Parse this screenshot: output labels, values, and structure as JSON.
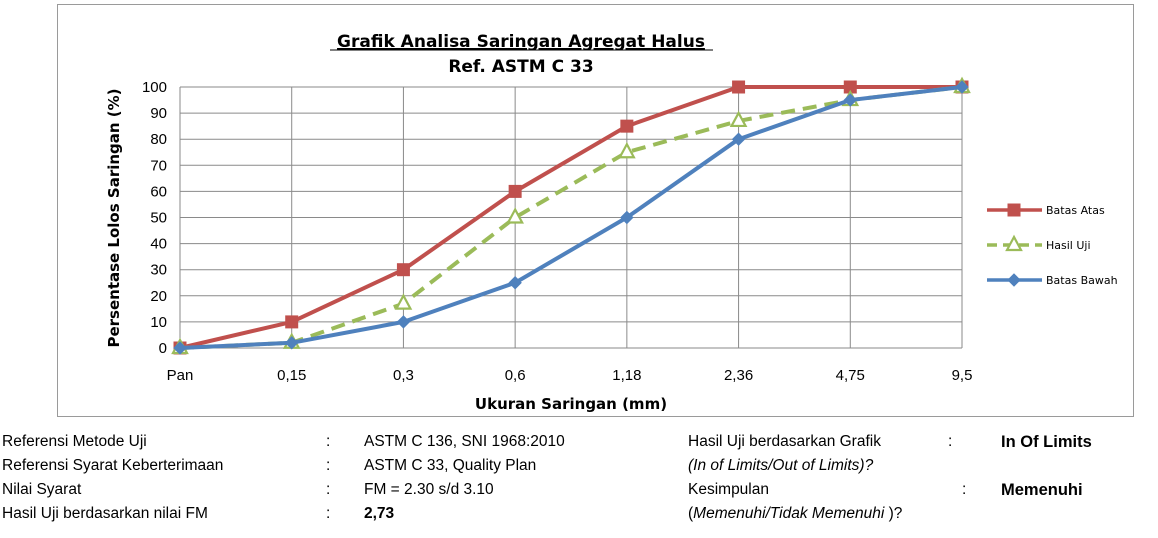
{
  "chart_data": {
    "type": "line",
    "title": "Grafik  Analisa Saringan Agregat Halus",
    "subtitle": "Ref. ASTM C 33",
    "xlabel": "Ukuran  Saringan (mm)",
    "ylabel": "Persentase Lolos Saringan (%)",
    "categories": [
      "Pan",
      "0,15",
      "0,3",
      "0,6",
      "1,18",
      "2,36",
      "4,75",
      "9,5"
    ],
    "ylim": [
      0,
      100
    ],
    "yticks": [
      0,
      10,
      20,
      30,
      40,
      50,
      60,
      70,
      80,
      90,
      100
    ],
    "grid": true,
    "legend_position": "right",
    "series": [
      {
        "name": "Batas Atas",
        "color": "#c0504d",
        "marker": "square",
        "dashed": false,
        "values": [
          0,
          10,
          30,
          60,
          85,
          100,
          100,
          100
        ]
      },
      {
        "name": "Hasil Uji",
        "color": "#9bbb59",
        "marker": "triangle",
        "dashed": true,
        "values": [
          0,
          2,
          17,
          50,
          75,
          87,
          95,
          100
        ]
      },
      {
        "name": "Batas Bawah",
        "color": "#4f81bd",
        "marker": "diamond",
        "dashed": false,
        "values": [
          0,
          2,
          10,
          25,
          50,
          80,
          95,
          100
        ]
      }
    ]
  },
  "info": {
    "left": [
      {
        "label": "Referensi Metode Uji",
        "colon": ":",
        "value": "ASTM C 136, SNI 1968:2010"
      },
      {
        "label": "Referensi Syarat Keberterimaan",
        "colon": ":",
        "value": "ASTM C 33, Quality Plan"
      },
      {
        "label": "Nilai Syarat",
        "colon": ":",
        "value": "FM = 2.30 s/d 3.10"
      },
      {
        "label": "Hasil Uji berdasarkan nilai FM",
        "colon": ":",
        "value": "2,73"
      }
    ],
    "right": {
      "grafik_label": "Hasil Uji berdasarkan Grafik",
      "grafik_colon": ":",
      "grafik_value": "In Of Limits",
      "grafik_hint": "(In of Limits/Out of Limits)?",
      "kesimpulan_label": "Kesimpulan",
      "kesimpulan_colon": ":",
      "kesimpulan_value": "Memenuhi",
      "kesimpulan_hint_open": "(",
      "kesimpulan_hint_italic": "Memenuhi/Tidak Memenuhi",
      "kesimpulan_hint_close": " )?"
    }
  }
}
